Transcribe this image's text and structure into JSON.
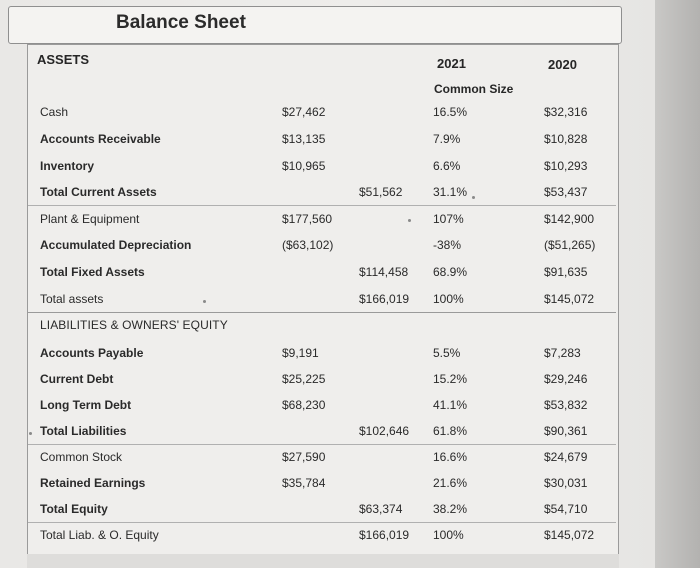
{
  "title": "Balance Sheet",
  "header": {
    "assets": "ASSETS",
    "year_current": "2021",
    "year_prior": "2020",
    "common_size": "Common Size"
  },
  "liabilities_section": "LIABILITIES & OWNERS' EQUITY",
  "rows": [
    {
      "label": "Cash",
      "c1": "$27,462",
      "c2": "",
      "c3": "16.5%",
      "c4": "$32,316"
    },
    {
      "label": "Accounts Receivable",
      "c1": "$13,135",
      "c2": "",
      "c3": "7.9%",
      "c4": "$10,828"
    },
    {
      "label": "Inventory",
      "c1": "$10,965",
      "c2": "",
      "c3": "6.6%",
      "c4": "$10,293"
    },
    {
      "label": "Total Current Assets",
      "c1": "",
      "c2": "$51,562",
      "c3": "31.1%",
      "c4": "$53,437"
    },
    {
      "label": "Plant & Equipment",
      "c1": "$177,560",
      "c2": "",
      "c3": "107%",
      "c4": "$142,900"
    },
    {
      "label": "Accumulated Depreciation",
      "c1": "($63,102)",
      "c2": "",
      "c3": "-38%",
      "c4": "($51,265)"
    },
    {
      "label": "Total Fixed Assets",
      "c1": "",
      "c2": "$114,458",
      "c3": "68.9%",
      "c4": "$91,635"
    },
    {
      "label": "Total assets",
      "c1": "",
      "c2": "$166,019",
      "c3": "100%",
      "c4": "$145,072"
    },
    {
      "label": "Accounts Payable",
      "c1": "$9,191",
      "c2": "",
      "c3": "5.5%",
      "c4": "$7,283"
    },
    {
      "label": "Current Debt",
      "c1": "$25,225",
      "c2": "",
      "c3": "15.2%",
      "c4": "$29,246"
    },
    {
      "label": "Long Term Debt",
      "c1": "$68,230",
      "c2": "",
      "c3": "41.1%",
      "c4": "$53,832"
    },
    {
      "label": "Total Liabilities",
      "c1": "",
      "c2": "$102,646",
      "c3": "61.8%",
      "c4": "$90,361"
    },
    {
      "label": "Common Stock",
      "c1": "$27,590",
      "c2": "",
      "c3": "16.6%",
      "c4": "$24,679"
    },
    {
      "label": "Retained Earnings",
      "c1": "$35,784",
      "c2": "",
      "c3": "21.6%",
      "c4": "$30,031"
    },
    {
      "label": "Total Equity",
      "c1": "",
      "c2": "$63,374",
      "c3": "38.2%",
      "c4": "$54,710"
    },
    {
      "label": "Total Liab. & O. Equity",
      "c1": "",
      "c2": "$166,019",
      "c3": "100%",
      "c4": "$145,072"
    }
  ]
}
